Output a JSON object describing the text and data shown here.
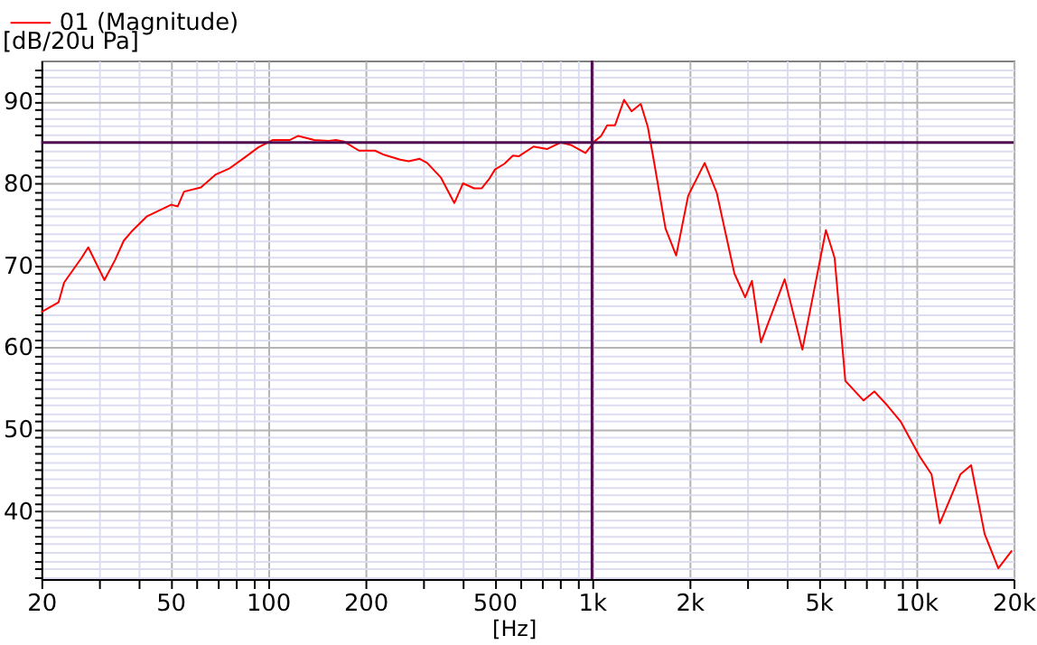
{
  "chart_data": {
    "type": "line",
    "xlabel": "[Hz]",
    "ylabel": "[dB/20u Pa]",
    "log": "x",
    "grid": true,
    "legend": "top left",
    "xlim": [
      20,
      20000
    ],
    "ylim": [
      31.7,
      95
    ],
    "xticks": [
      20,
      {
        "value": 30,
        "label": null
      },
      {
        "value": 40,
        "label": null
      },
      50,
      {
        "value": 60,
        "label": null
      },
      {
        "value": 70,
        "label": null
      },
      {
        "value": 80,
        "label": null
      },
      {
        "value": 90,
        "label": null
      },
      100,
      200,
      {
        "value": 300,
        "label": null
      },
      {
        "value": 400,
        "label": null
      },
      500,
      {
        "value": 600,
        "label": null
      },
      {
        "value": 700,
        "label": null
      },
      {
        "value": 800,
        "label": null
      },
      {
        "value": 900,
        "label": null
      },
      {
        "value": 1000,
        "label": "1k"
      },
      {
        "value": 2000,
        "label": "2k"
      },
      {
        "value": 3000,
        "label": null
      },
      {
        "value": 4000,
        "label": null
      },
      {
        "value": 5000,
        "label": "5k"
      },
      {
        "value": 6000,
        "label": null
      },
      {
        "value": 7000,
        "label": null
      },
      {
        "value": 8000,
        "label": null
      },
      {
        "value": 9000,
        "label": null
      },
      {
        "value": 10000,
        "label": "10k"
      },
      {
        "value": 20000,
        "label": "20k"
      }
    ],
    "yticks": [
      {
        "value": 32,
        "label": null
      },
      {
        "value": 33,
        "label": null
      },
      {
        "value": 34,
        "label": null
      },
      {
        "value": 35,
        "label": null
      },
      {
        "value": 36,
        "label": null
      },
      {
        "value": 37,
        "label": null
      },
      {
        "value": 38,
        "label": null
      },
      {
        "value": 39,
        "label": null
      },
      40,
      {
        "value": 41,
        "label": null
      },
      {
        "value": 42,
        "label": null
      },
      {
        "value": 43,
        "label": null
      },
      {
        "value": 44,
        "label": null
      },
      {
        "value": 45,
        "label": null
      },
      {
        "value": 46,
        "label": null
      },
      {
        "value": 47,
        "label": null
      },
      {
        "value": 48,
        "label": null
      },
      {
        "value": 49,
        "label": null
      },
      50,
      {
        "value": 51,
        "label": null
      },
      {
        "value": 52,
        "label": null
      },
      {
        "value": 53,
        "label": null
      },
      {
        "value": 54,
        "label": null
      },
      {
        "value": 55,
        "label": null
      },
      {
        "value": 56,
        "label": null
      },
      {
        "value": 57,
        "label": null
      },
      {
        "value": 58,
        "label": null
      },
      {
        "value": 59,
        "label": null
      },
      60,
      {
        "value": 61,
        "label": null
      },
      {
        "value": 62,
        "label": null
      },
      {
        "value": 63,
        "label": null
      },
      {
        "value": 64,
        "label": null
      },
      {
        "value": 65,
        "label": null
      },
      {
        "value": 66,
        "label": null
      },
      {
        "value": 67,
        "label": null
      },
      {
        "value": 68,
        "label": null
      },
      {
        "value": 69,
        "label": null
      },
      70,
      {
        "value": 71,
        "label": null
      },
      {
        "value": 72,
        "label": null
      },
      {
        "value": 73,
        "label": null
      },
      {
        "value": 74,
        "label": null
      },
      {
        "value": 75,
        "label": null
      },
      {
        "value": 76,
        "label": null
      },
      {
        "value": 77,
        "label": null
      },
      {
        "value": 78,
        "label": null
      },
      {
        "value": 79,
        "label": null
      },
      80,
      {
        "value": 81,
        "label": null
      },
      {
        "value": 82,
        "label": null
      },
      {
        "value": 83,
        "label": null
      },
      {
        "value": 84,
        "label": null
      },
      {
        "value": 86,
        "label": null
      },
      {
        "value": 87,
        "label": null
      },
      {
        "value": 88,
        "label": null
      },
      {
        "value": 89,
        "label": null
      },
      90,
      {
        "value": 91,
        "label": null
      },
      {
        "value": 92,
        "label": null
      },
      {
        "value": 93,
        "label": null
      },
      {
        "value": 94,
        "label": null
      }
    ],
    "ref_lines": [
      {
        "axis": "y",
        "value": 85,
        "color": "#500a50"
      },
      {
        "axis": "x",
        "value": 1000,
        "color": "#500a50"
      }
    ],
    "series": [
      {
        "name": "01 (Magnitude)",
        "color": "#ff0000",
        "x": [
          20,
          22.6,
          23.5,
          26.6,
          27.9,
          31.3,
          33.8,
          35.9,
          37.9,
          42.4,
          50.3,
          52.7,
          55.1,
          62.1,
          69.1,
          75.9,
          85.7,
          93.4,
          103.6,
          117,
          124,
          139,
          154,
          162,
          172,
          191,
          214,
          228,
          256,
          272,
          294,
          310,
          342,
          376,
          400,
          433,
          457,
          481,
          502,
          537,
          570,
          594,
          660,
          728,
          802,
          860,
          955,
          1023,
          1067,
          1114,
          1178,
          1256,
          1325,
          1414,
          1487,
          1550,
          1686,
          1819,
          1981,
          2227,
          2425,
          2751,
          2969,
          3116,
          3323,
          3932,
          4459,
          5271,
          5607,
          6051,
          6887,
          7440,
          8151,
          8978,
          10250,
          11160,
          11840,
          13710,
          14790,
          16280,
          17940,
          19770
        ],
        "values": [
          64.3,
          65.5,
          67.9,
          70.9,
          72.2,
          68.2,
          70.7,
          73.0,
          74.1,
          76.0,
          77.4,
          77.2,
          79.0,
          79.5,
          81.1,
          81.8,
          83.3,
          84.4,
          85.3,
          85.3,
          85.8,
          85.3,
          85.2,
          85.3,
          85.1,
          84.0,
          84.0,
          83.5,
          82.9,
          82.7,
          83.0,
          82.5,
          80.7,
          77.6,
          80.0,
          79.4,
          79.4,
          80.5,
          81.7,
          82.4,
          83.4,
          83.3,
          84.5,
          84.2,
          85.0,
          84.7,
          83.7,
          85.2,
          85.8,
          87.1,
          87.1,
          90.2,
          88.8,
          89.7,
          86.9,
          82.9,
          74.5,
          71.2,
          78.5,
          82.5,
          78.9,
          69.0,
          66.1,
          68.1,
          60.6,
          68.3,
          59.7,
          74.3,
          70.9,
          55.9,
          53.5,
          54.6,
          52.9,
          50.9,
          46.7,
          44.5,
          38.5,
          44.5,
          45.6,
          37.2,
          33.0,
          35.2
        ]
      }
    ]
  }
}
